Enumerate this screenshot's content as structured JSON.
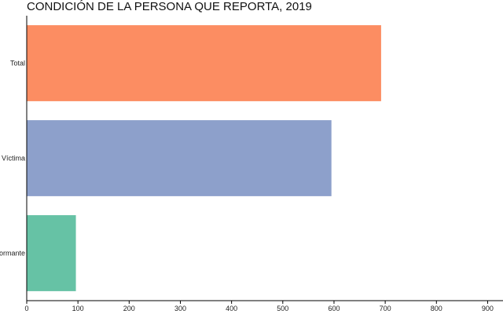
{
  "chart_data": {
    "type": "bar",
    "orientation": "horizontal",
    "title": "CONDICIÓN DE LA PERSONA QUE REPORTA, 2019",
    "xlabel": "",
    "ylabel": "",
    "categories": [
      "Total",
      "Víctima",
      "Informante"
    ],
    "values": [
      692,
      595,
      96
    ],
    "colors": [
      "#fc8d62",
      "#8da0cb",
      "#66c2a5"
    ],
    "xlim": [
      0,
      930
    ],
    "xticks": [
      0,
      100,
      200,
      300,
      400,
      500,
      600,
      700,
      800,
      900
    ],
    "grid": false,
    "legend": "none"
  }
}
